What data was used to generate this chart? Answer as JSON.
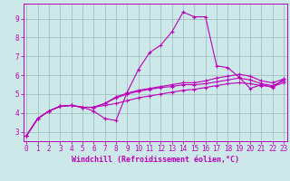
{
  "xlabel": "Windchill (Refroidissement éolien,°C)",
  "x_ticks": [
    0,
    1,
    2,
    3,
    4,
    5,
    6,
    7,
    8,
    9,
    10,
    11,
    12,
    13,
    14,
    15,
    16,
    17,
    18,
    19,
    20,
    21,
    22,
    23
  ],
  "y_ticks": [
    3,
    4,
    5,
    6,
    7,
    8,
    9
  ],
  "ylim": [
    2.5,
    9.8
  ],
  "xlim": [
    -0.3,
    23.3
  ],
  "line_color": "#bb00bb",
  "bg_color": "#cce8e8",
  "grid_color": "#99bbbb",
  "line1_y": [
    2.8,
    3.7,
    4.1,
    4.35,
    4.4,
    4.3,
    4.1,
    3.7,
    3.6,
    5.1,
    6.3,
    7.2,
    7.6,
    8.3,
    9.35,
    9.1,
    9.1,
    6.5,
    6.4,
    5.9,
    5.3,
    5.5,
    5.35,
    5.8
  ],
  "line2_y": [
    2.8,
    3.7,
    4.1,
    4.35,
    4.4,
    4.3,
    4.3,
    4.4,
    4.5,
    4.65,
    4.8,
    4.9,
    5.0,
    5.1,
    5.2,
    5.25,
    5.35,
    5.45,
    5.55,
    5.6,
    5.55,
    5.45,
    5.4,
    5.6
  ],
  "line3_y": [
    2.8,
    3.7,
    4.1,
    4.35,
    4.4,
    4.3,
    4.3,
    4.5,
    4.8,
    5.0,
    5.15,
    5.25,
    5.35,
    5.4,
    5.5,
    5.5,
    5.55,
    5.65,
    5.75,
    5.85,
    5.75,
    5.55,
    5.45,
    5.7
  ],
  "line4_y": [
    2.8,
    3.7,
    4.1,
    4.35,
    4.4,
    4.3,
    4.3,
    4.5,
    4.85,
    5.05,
    5.2,
    5.3,
    5.4,
    5.5,
    5.6,
    5.6,
    5.7,
    5.85,
    5.95,
    6.05,
    5.95,
    5.7,
    5.6,
    5.8
  ],
  "tick_fontsize": 5.5,
  "xlabel_fontsize": 6.0
}
